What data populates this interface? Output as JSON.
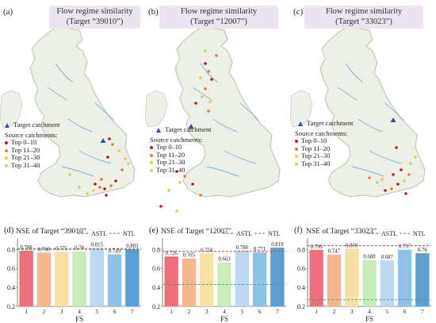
{
  "panels": [
    {
      "letter": "(a)",
      "title_line1": "Flow regime similarity",
      "title_line2": "(Target “39010”)",
      "legend": {
        "target": "Target catchment",
        "source_title": "Source catchments:",
        "items": [
          "Top 0–10",
          "Top 11–20",
          "Top 21–30",
          "Top 31–40"
        ]
      },
      "bar_letter": "(d)",
      "bar_title": "NSE of Target “39010”"
    },
    {
      "letter": "(b)",
      "title_line1": "Flow regime similarity",
      "title_line2": "(Target “12007”)",
      "legend": {
        "target": "Target catchment",
        "source_title": "Source catchments:",
        "items": [
          "Top 0–10",
          "Top 11–20",
          "Top 21–30",
          "Top 31–40"
        ]
      },
      "bar_letter": "(e)",
      "bar_title": "NSE of Target “12007”"
    },
    {
      "letter": "(c)",
      "title_line1": "Flow regime similarity",
      "title_line2": "(Target “33023”)",
      "legend": {
        "target": "Target catchment",
        "source_title": "Source catchments:",
        "items": [
          "Top 0–10",
          "Top 11–20",
          "Top 21–30",
          "Top 31–40"
        ]
      },
      "bar_letter": "(f)",
      "bar_title": "NSE of Target “33023”"
    }
  ],
  "colors": {
    "top0_10": "#b81c2c",
    "top11_20": "#f07a30",
    "top21_30": "#f2c84a",
    "top31_40": "#b9dc5a",
    "target": "#3350a8",
    "land": "#ecf0e6",
    "coast": "#b8c4b0",
    "river": "#5aa0d8",
    "astl_line": "#d23b3b",
    "ntl_line": "#34a87a"
  },
  "chart_data": [
    {
      "type": "bar",
      "title": "NSE of Target “39010”",
      "xlabel": "FS",
      "ylabel": "",
      "categories": [
        "1",
        "2",
        "3",
        "4",
        "5",
        "6",
        "7"
      ],
      "values": [
        0.788,
        0.766,
        0.775,
        0.78,
        0.815,
        0.749,
        0.803
      ],
      "value_labels": [
        "0.788",
        "0.766",
        "0.775",
        "0.78",
        "0.815",
        "0.749",
        "0.803"
      ],
      "bar_colors": [
        "#ee6f7c",
        "#f6b88c",
        "#f7e0a4",
        "#c8ebbc",
        "#bcd9f0",
        "#8fc2e8",
        "#5b9fd2"
      ],
      "ylim": [
        0.2,
        0.92
      ],
      "yticks": [
        "0.2",
        "0.4",
        "0.6",
        "0.8"
      ],
      "reference_lines": [
        {
          "name": "ASTL",
          "value": 0.81
        },
        {
          "name": "NTL",
          "value": 0.8
        }
      ],
      "grid": false,
      "legend": "top-right"
    },
    {
      "type": "bar",
      "title": "NSE of Target “12007”",
      "xlabel": "FS",
      "ylabel": "",
      "categories": [
        "1",
        "2",
        "3",
        "4",
        "5",
        "6",
        "7"
      ],
      "values": [
        0.726,
        0.705,
        0.758,
        0.663,
        0.788,
        0.771,
        0.819
      ],
      "value_labels": [
        "0.726",
        "0.705",
        "0.758",
        "0.663",
        "0.788",
        "0.771",
        "0.819"
      ],
      "bar_colors": [
        "#ee6f7c",
        "#f6b88c",
        "#f7e0a4",
        "#c8ebbc",
        "#bcd9f0",
        "#8fc2e8",
        "#5b9fd2"
      ],
      "ylim": [
        0.2,
        0.92
      ],
      "yticks": [
        "0.2",
        "0.4",
        "0.6",
        "0.8"
      ],
      "reference_lines": [
        {
          "name": "ASTL",
          "value": 0.78
        },
        {
          "name": "NTL",
          "value": 0.43
        }
      ],
      "grid": false,
      "legend": "top-right"
    },
    {
      "type": "bar",
      "title": "NSE of Target “33023”",
      "xlabel": "FS",
      "ylabel": "",
      "categories": [
        "1",
        "2",
        "3",
        "4",
        "5",
        "6",
        "7"
      ],
      "values": [
        0.796,
        0.747,
        0.809,
        0.688,
        0.687,
        0.797,
        0.76
      ],
      "value_labels": [
        "0.796",
        "0.747",
        "0.809",
        "0.688",
        "0.687",
        "0.797",
        "0.76"
      ],
      "bar_colors": [
        "#ee6f7c",
        "#f6b88c",
        "#f7e0a4",
        "#c8ebbc",
        "#bcd9f0",
        "#8fc2e8",
        "#5b9fd2"
      ],
      "ylim": [
        0.2,
        0.92
      ],
      "yticks": [
        "0.2",
        "0.4",
        "0.6",
        "0.8"
      ],
      "reference_lines": [
        {
          "name": "ASTL",
          "value": 0.84
        },
        {
          "name": "NTL",
          "value": 0.27
        }
      ],
      "grid": false,
      "legend": "top-right"
    }
  ]
}
